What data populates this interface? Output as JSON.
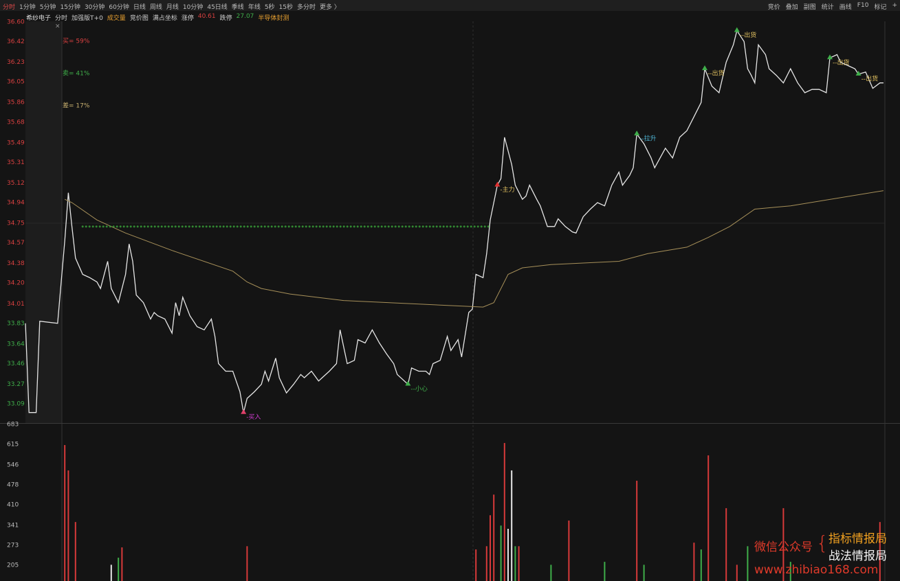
{
  "toolbar": {
    "left": [
      "分时",
      "1分钟",
      "5分钟",
      "15分钟",
      "30分钟",
      "60分钟",
      "日线",
      "周线",
      "月线",
      "10分钟",
      "45日线",
      "季线",
      "年线",
      "5秒",
      "15秒",
      "多分时",
      "更多 〉"
    ],
    "right": [
      "竞价",
      "叠加",
      "副图",
      "统计",
      "画线",
      "F10",
      "标记",
      "+"
    ]
  },
  "info": {
    "stock": "希纱电子",
    "modes": [
      "分时",
      "加强版T+0"
    ],
    "volume": "成交量",
    "tools": [
      "竞价图",
      "满占坐标"
    ],
    "limit_up_label": "涨停",
    "limit_up": 40.61,
    "limit_down_label": "跌停",
    "limit_down": 27.07,
    "sector": "半导体封测",
    "close": "×"
  },
  "chart_data": [
    {
      "type": "line",
      "series": [
        {
          "color": "#e6e6e6",
          "x": [
            0,
            1,
            3,
            4,
            9,
            10,
            11,
            12,
            13,
            14,
            16,
            18,
            20,
            21,
            23,
            24,
            26,
            28,
            29,
            30,
            31,
            33,
            35,
            36,
            37,
            39,
            41,
            42,
            43,
            44,
            46,
            48,
            50,
            52,
            53,
            54,
            56,
            58,
            60,
            61,
            62,
            64,
            66,
            67,
            68,
            70,
            71,
            73,
            75,
            77,
            78,
            80,
            82,
            83,
            85,
            87,
            88,
            90,
            92,
            93,
            95,
            97,
            99,
            101,
            103,
            104,
            107,
            108,
            110,
            112,
            113,
            114,
            116,
            118,
            119,
            121,
            122,
            124,
            125,
            126,
            128,
            129,
            130,
            132,
            133,
            134,
            136,
            137,
            139,
            140,
            141,
            143,
            144,
            146,
            148,
            149,
            151,
            153,
            154,
            156,
            158,
            160,
            162,
            164,
            166,
            167,
            169,
            170,
            171,
            173,
            175,
            176,
            178,
            179,
            181,
            183,
            185,
            187,
            189,
            190,
            192,
            194,
            196,
            198,
            199,
            201,
            202,
            203,
            204,
            205,
            207,
            208,
            210,
            212,
            214,
            216,
            218,
            220,
            222,
            224,
            225,
            227,
            228,
            230,
            232,
            233,
            235,
            237,
            239,
            240
          ],
          "values": [
            33.83,
            33.01,
            33.01,
            33.85,
            33.83,
            34.21,
            34.59,
            35.03,
            34.72,
            34.43,
            34.28,
            34.25,
            34.21,
            34.15,
            34.4,
            34.15,
            34.02,
            34.28,
            34.56,
            34.4,
            34.09,
            34.02,
            33.87,
            33.93,
            33.9,
            33.87,
            33.74,
            34.02,
            33.9,
            34.07,
            33.9,
            33.8,
            33.77,
            33.87,
            33.71,
            33.46,
            33.39,
            33.39,
            33.2,
            33.01,
            33.14,
            33.2,
            33.27,
            33.39,
            33.3,
            33.51,
            33.33,
            33.19,
            33.27,
            33.36,
            33.33,
            33.39,
            33.3,
            33.33,
            33.39,
            33.46,
            33.77,
            33.46,
            33.49,
            33.68,
            33.65,
            33.77,
            33.65,
            33.55,
            33.46,
            33.36,
            33.27,
            33.42,
            33.39,
            33.39,
            33.36,
            33.46,
            33.49,
            33.71,
            33.58,
            33.68,
            33.52,
            33.93,
            33.96,
            34.28,
            34.25,
            34.47,
            34.78,
            35.1,
            35.16,
            35.54,
            35.29,
            35.1,
            34.97,
            35.0,
            35.1,
            34.97,
            34.91,
            34.72,
            34.72,
            34.79,
            34.72,
            34.67,
            34.66,
            34.81,
            34.88,
            34.94,
            34.91,
            35.1,
            35.22,
            35.1,
            35.19,
            35.26,
            35.57,
            35.48,
            35.35,
            35.26,
            35.38,
            35.44,
            35.35,
            35.54,
            35.6,
            35.73,
            35.86,
            36.17,
            36.01,
            35.95,
            36.23,
            36.39,
            36.52,
            36.42,
            36.17,
            36.11,
            36.04,
            36.39,
            36.3,
            36.17,
            36.11,
            36.04,
            36.17,
            36.04,
            35.95,
            35.98,
            35.98,
            35.95,
            36.27,
            36.3,
            36.23,
            36.2,
            36.17,
            36.12,
            36.14,
            35.99,
            36.04,
            36.04
          ]
        },
        {
          "color": "#a8915a",
          "x": [
            11,
            13,
            20,
            28,
            41,
            58,
            62,
            66,
            74,
            89,
            108,
            128,
            131,
            135,
            139,
            147,
            166,
            174,
            185,
            191,
            197,
            204,
            214,
            240
          ],
          "values": [
            34.97,
            34.94,
            34.78,
            34.66,
            34.5,
            34.31,
            34.21,
            34.15,
            34.1,
            34.04,
            34.01,
            33.98,
            34.02,
            34.28,
            34.34,
            34.37,
            34.4,
            34.47,
            34.53,
            34.62,
            34.72,
            34.88,
            34.91,
            35.05
          ]
        }
      ],
      "xlim": [
        0,
        240
      ],
      "ylim": [
        32.92,
        36.6
      ],
      "yticks": [
        {
          "value": 36.6,
          "label": "36.60"
        },
        36.42,
        36.23,
        36.05,
        35.86,
        35.68,
        35.49,
        35.31,
        35.12,
        34.94,
        34.75,
        34.57,
        34.38,
        {
          "value": 34.2,
          "label": "34.20"
        },
        34.01,
        33.83,
        33.64,
        33.46,
        33.27,
        33.09
      ],
      "ytick_colors": [
        "#d94040",
        "#d94040",
        "#d94040",
        "#d94040",
        "#d94040",
        "#d94040",
        "#d94040",
        "#d94040",
        "#d94040",
        "#d94040",
        "#d94040",
        "#d94040",
        "#d94040",
        "#d94040",
        "#d94040",
        "#3fae4a",
        "#3fae4a",
        "#3fae4a",
        "#3fae4a",
        "#3fae4a"
      ],
      "grid": false,
      "levels": [
        {
          "value": 34.72,
          "xrange": [
            16,
            130
          ],
          "color": "#3aa53a"
        }
      ],
      "annotations": [
        {
          "text": "-买入",
          "x": 61,
          "y": 33.01,
          "color": "#d23cd2",
          "arrow": "#e0406a"
        },
        {
          "text": "--小心",
          "x": 107,
          "y": 33.27,
          "color": "#3fae4a",
          "arrow": "#3fae4a"
        },
        {
          "text": "-主力",
          "x": 132,
          "y": 35.1,
          "color": "#e0c060",
          "arrow": "#e03030"
        },
        {
          "text": "--拉升",
          "x": 171,
          "y": 35.57,
          "color": "#4fb8d8",
          "arrow": "#3fae4a"
        },
        {
          "text": "--出货",
          "x": 190,
          "y": 36.17,
          "color": "#e0c060",
          "arrow": "#3fae4a"
        },
        {
          "text": "--出货",
          "x": 199,
          "y": 36.52,
          "color": "#e0c060",
          "arrow": "#3fae4a"
        },
        {
          "text": "--出货",
          "x": 225,
          "y": 36.27,
          "color": "#e0c060",
          "arrow": "#3fae4a"
        },
        {
          "text": "--出货",
          "x": 233,
          "y": 36.12,
          "color": "#e0c060",
          "arrow": "#3fae4a"
        }
      ],
      "stats": [
        {
          "text": "买= 59%",
          "color": "#d94040"
        },
        {
          "text": "卖= 41%",
          "color": "#3fae4a"
        },
        {
          "text": "差= 17%",
          "color": "#c8b070"
        }
      ]
    },
    {
      "type": "bar",
      "series": [
        {
          "color": "#d83a3a",
          "x": [
            11,
            12,
            14,
            27,
            62,
            126,
            129,
            130,
            131,
            134,
            138,
            152,
            171,
            187,
            191,
            196,
            199,
            212,
            239
          ],
          "values": [
            613,
            527,
            352,
            266,
            270,
            259,
            270,
            375,
            445,
            620,
            270,
            357,
            492,
            282,
            578,
            399,
            207,
            399,
            352
          ]
        },
        {
          "color": "#3fae4a",
          "x": [
            26,
            133,
            137,
            147,
            162,
            173,
            189,
            202,
            214
          ],
          "values": [
            231,
            340,
            270,
            207,
            217,
            207,
            259,
            270,
            217
          ]
        },
        {
          "color": "#e6e6e6",
          "x": [
            24,
            135,
            136
          ],
          "values": [
            207,
            329,
            527
          ]
        }
      ],
      "xlim": [
        0,
        240
      ],
      "ylim": [
        152,
        683
      ],
      "yticks": [
        683,
        615,
        546,
        478,
        410,
        341,
        273,
        205
      ],
      "grid": false
    }
  ],
  "watermark": {
    "label": "微信公众号",
    "brace": "{",
    "line1": "指标情报局",
    "line2": "战法情报局",
    "url": "www.zhibiao168.com"
  }
}
